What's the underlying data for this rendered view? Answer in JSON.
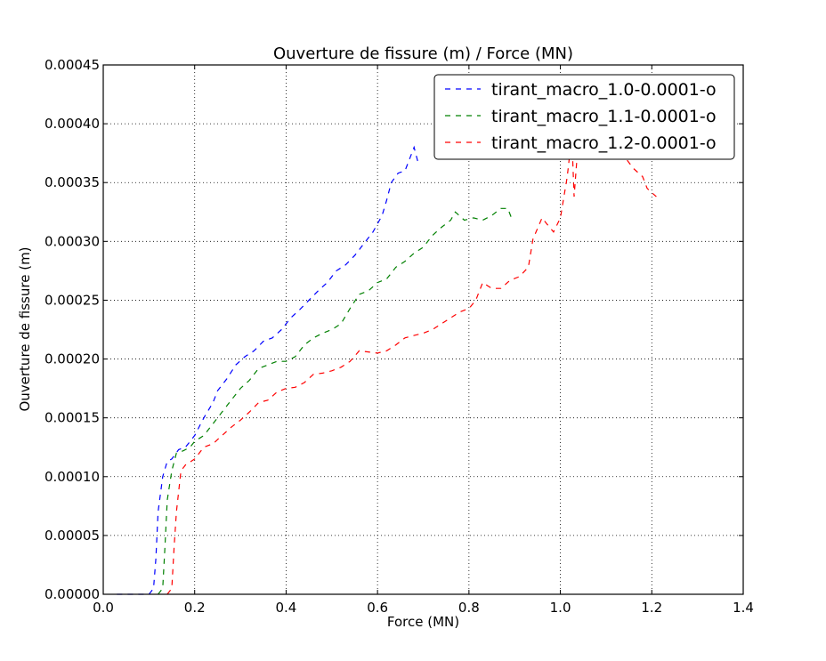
{
  "chart_data": {
    "type": "line",
    "title": "Ouverture de fissure (m) / Force (MN)",
    "xlabel": "Force (MN)",
    "ylabel": "Ouverture de fissure (m)",
    "xlim": [
      0.0,
      1.4
    ],
    "ylim": [
      0.0,
      0.00045
    ],
    "xticks": [
      "0.0",
      "0.2",
      "0.4",
      "0.6",
      "0.8",
      "1.0",
      "1.2",
      "1.4"
    ],
    "yticks": [
      "0.00000",
      "0.00005",
      "0.00010",
      "0.00015",
      "0.00020",
      "0.00025",
      "0.00030",
      "0.00035",
      "0.00040",
      "0.00045"
    ],
    "grid": true,
    "legend_position": "top-right",
    "series": [
      {
        "name": "tirant_macro_1.0-0.0001-o",
        "color": "#0000ff",
        "points": [
          [
            0.03,
            0
          ],
          [
            0.05,
            0
          ],
          [
            0.08,
            0
          ],
          [
            0.1,
            0
          ],
          [
            0.11,
            5e-06
          ],
          [
            0.115,
            3e-05
          ],
          [
            0.12,
            7e-05
          ],
          [
            0.13,
            0.0001
          ],
          [
            0.14,
            0.000113
          ],
          [
            0.15,
            0.000115
          ],
          [
            0.165,
            0.000123
          ],
          [
            0.18,
            0.000125
          ],
          [
            0.2,
            0.000135
          ],
          [
            0.22,
            0.00015
          ],
          [
            0.24,
            0.000163
          ],
          [
            0.25,
            0.000173
          ],
          [
            0.27,
            0.000183
          ],
          [
            0.29,
            0.000195
          ],
          [
            0.31,
            0.000202
          ],
          [
            0.33,
            0.000207
          ],
          [
            0.35,
            0.000215
          ],
          [
            0.37,
            0.000218
          ],
          [
            0.39,
            0.000225
          ],
          [
            0.41,
            0.000235
          ],
          [
            0.43,
            0.000242
          ],
          [
            0.45,
            0.00025
          ],
          [
            0.47,
            0.000258
          ],
          [
            0.49,
            0.000265
          ],
          [
            0.51,
            0.000275
          ],
          [
            0.53,
            0.00028
          ],
          [
            0.55,
            0.000288
          ],
          [
            0.57,
            0.000298
          ],
          [
            0.59,
            0.000308
          ],
          [
            0.61,
            0.000322
          ],
          [
            0.62,
            0.000335
          ],
          [
            0.63,
            0.00035
          ],
          [
            0.645,
            0.000358
          ],
          [
            0.66,
            0.00036
          ],
          [
            0.67,
            0.00037
          ],
          [
            0.68,
            0.00038
          ],
          [
            0.69,
            0.000365
          ]
        ]
      },
      {
        "name": "tirant_macro_1.1-0.0001-o",
        "color": "#008000",
        "points": [
          [
            0.12,
            0
          ],
          [
            0.13,
            5e-06
          ],
          [
            0.135,
            4e-05
          ],
          [
            0.14,
            8e-05
          ],
          [
            0.15,
            0.000105
          ],
          [
            0.16,
            0.00012
          ],
          [
            0.175,
            0.000122
          ],
          [
            0.19,
            0.000125
          ],
          [
            0.2,
            0.00013
          ],
          [
            0.22,
            0.000135
          ],
          [
            0.24,
            0.000145
          ],
          [
            0.26,
            0.000155
          ],
          [
            0.28,
            0.000165
          ],
          [
            0.3,
            0.000175
          ],
          [
            0.32,
            0.000182
          ],
          [
            0.34,
            0.000192
          ],
          [
            0.36,
            0.000195
          ],
          [
            0.38,
            0.000198
          ],
          [
            0.4,
            0.000198
          ],
          [
            0.42,
            0.000202
          ],
          [
            0.44,
            0.000212
          ],
          [
            0.46,
            0.000218
          ],
          [
            0.48,
            0.000222
          ],
          [
            0.5,
            0.000225
          ],
          [
            0.52,
            0.00023
          ],
          [
            0.54,
            0.000243
          ],
          [
            0.56,
            0.000255
          ],
          [
            0.58,
            0.000258
          ],
          [
            0.6,
            0.000265
          ],
          [
            0.62,
            0.000268
          ],
          [
            0.64,
            0.000278
          ],
          [
            0.66,
            0.000283
          ],
          [
            0.68,
            0.00029
          ],
          [
            0.7,
            0.000295
          ],
          [
            0.72,
            0.000305
          ],
          [
            0.74,
            0.000312
          ],
          [
            0.76,
            0.000318
          ],
          [
            0.77,
            0.000325
          ],
          [
            0.79,
            0.000318
          ],
          [
            0.81,
            0.00032
          ],
          [
            0.83,
            0.000318
          ],
          [
            0.85,
            0.000322
          ],
          [
            0.87,
            0.000328
          ],
          [
            0.885,
            0.000328
          ],
          [
            0.895,
            0.000318
          ]
        ]
      },
      {
        "name": "tirant_macro_1.2-0.0001-o",
        "color": "#ff0000",
        "points": [
          [
            0.14,
            0
          ],
          [
            0.15,
            5e-06
          ],
          [
            0.155,
            4e-05
          ],
          [
            0.16,
            7e-05
          ],
          [
            0.17,
            0.000105
          ],
          [
            0.18,
            0.00011
          ],
          [
            0.2,
            0.000115
          ],
          [
            0.22,
            0.000125
          ],
          [
            0.24,
            0.000128
          ],
          [
            0.26,
            0.000135
          ],
          [
            0.28,
            0.000142
          ],
          [
            0.3,
            0.000148
          ],
          [
            0.32,
            0.000155
          ],
          [
            0.34,
            0.000163
          ],
          [
            0.36,
            0.000165
          ],
          [
            0.38,
            0.000172
          ],
          [
            0.4,
            0.000175
          ],
          [
            0.42,
            0.000176
          ],
          [
            0.44,
            0.00018
          ],
          [
            0.46,
            0.000187
          ],
          [
            0.48,
            0.000188
          ],
          [
            0.5,
            0.00019
          ],
          [
            0.52,
            0.000193
          ],
          [
            0.54,
            0.000198
          ],
          [
            0.56,
            0.000207
          ],
          [
            0.58,
            0.000206
          ],
          [
            0.6,
            0.000205
          ],
          [
            0.62,
            0.000207
          ],
          [
            0.64,
            0.000212
          ],
          [
            0.66,
            0.000218
          ],
          [
            0.68,
            0.00022
          ],
          [
            0.7,
            0.000222
          ],
          [
            0.72,
            0.000225
          ],
          [
            0.74,
            0.00023
          ],
          [
            0.76,
            0.000235
          ],
          [
            0.78,
            0.00024
          ],
          [
            0.8,
            0.000243
          ],
          [
            0.815,
            0.00025
          ],
          [
            0.83,
            0.000265
          ],
          [
            0.85,
            0.00026
          ],
          [
            0.87,
            0.00026
          ],
          [
            0.89,
            0.000267
          ],
          [
            0.91,
            0.00027
          ],
          [
            0.93,
            0.000278
          ],
          [
            0.94,
            0.000302
          ],
          [
            0.96,
            0.00032
          ],
          [
            0.97,
            0.000315
          ],
          [
            0.985,
            0.000308
          ],
          [
            1.0,
            0.00032
          ],
          [
            1.015,
            0.000355
          ],
          [
            1.025,
            0.00039
          ],
          [
            1.03,
            0.000338
          ],
          [
            1.04,
            0.00039
          ],
          [
            1.045,
            0.00043
          ],
          [
            1.055,
            0.00044
          ],
          [
            1.065,
            0.00042
          ],
          [
            1.075,
            0.000405
          ],
          [
            1.085,
            0.00039
          ],
          [
            1.1,
            0.00038
          ],
          [
            1.12,
            0.000378
          ],
          [
            1.14,
            0.000372
          ],
          [
            1.16,
            0.000362
          ],
          [
            1.18,
            0.000355
          ],
          [
            1.19,
            0.000345
          ],
          [
            1.21,
            0.000338
          ]
        ]
      }
    ]
  }
}
